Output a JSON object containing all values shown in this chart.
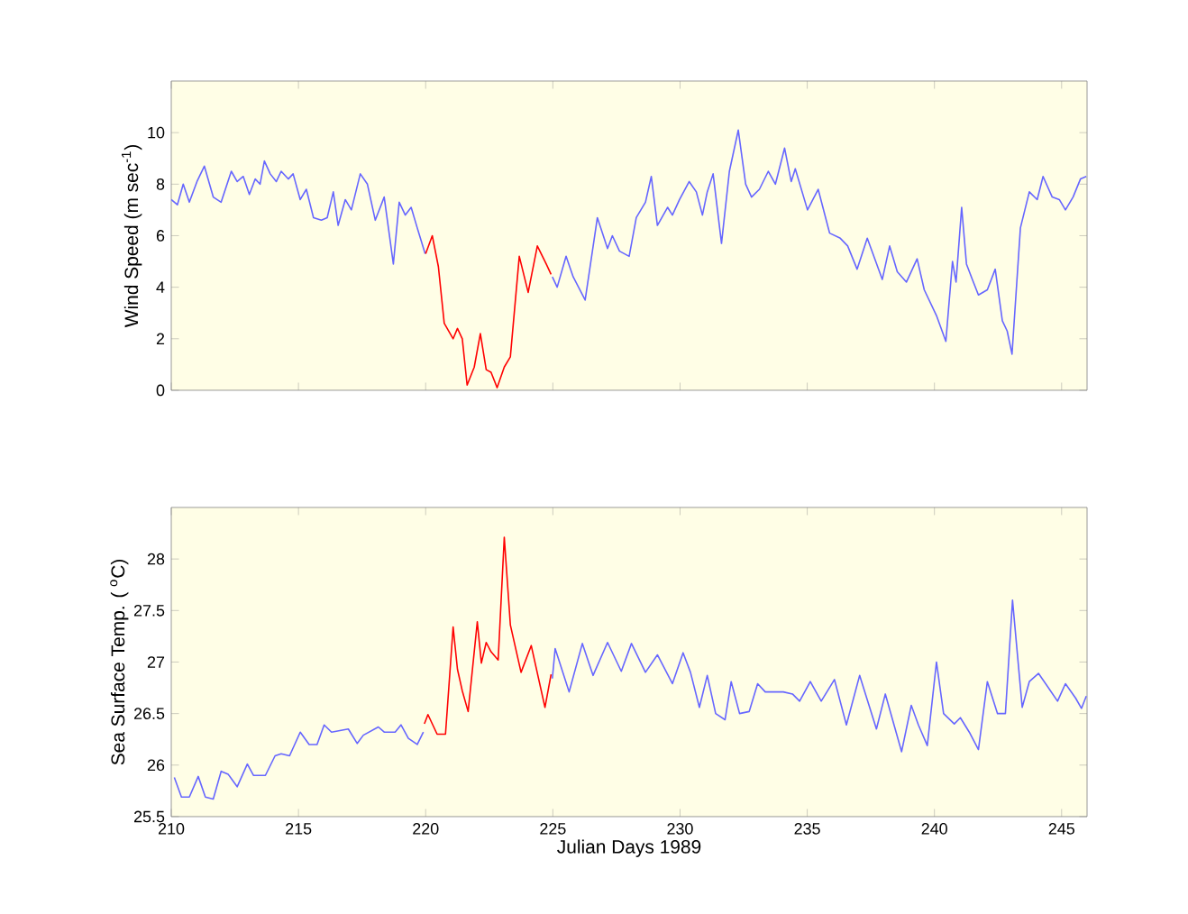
{
  "chart_data": [
    {
      "type": "line",
      "ylabel": "Wind Speed (m sec$^{-1}$)",
      "xlim": [
        210,
        246
      ],
      "ylim": [
        0,
        12
      ],
      "xticks": [
        210,
        215,
        220,
        225,
        230,
        235,
        240,
        245
      ],
      "yticks": [
        0,
        2,
        4,
        6,
        8,
        10
      ],
      "tick_labels": "y",
      "grid": false,
      "line_style": "solid",
      "marker": "none",
      "series": [
        {
          "color": "#6666ff",
          "x": [
            210.0,
            210.24,
            210.47,
            210.71,
            211.01,
            211.3,
            211.65,
            211.96,
            212.36,
            212.59,
            212.83,
            213.07,
            213.3,
            213.49,
            213.66,
            213.89,
            214.13,
            214.32,
            214.6,
            214.79,
            215.07,
            215.31,
            215.59,
            215.9,
            216.13,
            216.37,
            216.56,
            216.84,
            217.08,
            217.43,
            217.71,
            218.02,
            218.37,
            218.73,
            218.96,
            219.2,
            219.43,
            219.67,
            219.98,
            222.5,
            224.98,
            225.17,
            225.52,
            225.8,
            226.27,
            226.75,
            227.15,
            227.34,
            227.62,
            228.0,
            228.28,
            228.64,
            228.87,
            229.11,
            229.51,
            229.7,
            229.98,
            230.36,
            230.64,
            230.88,
            231.07,
            231.3,
            231.63,
            231.94,
            232.29,
            232.58,
            232.81,
            233.12,
            233.47,
            233.75,
            234.11,
            234.37,
            234.53,
            235.01,
            235.43,
            235.88,
            236.3,
            236.59,
            236.96,
            237.36,
            237.95,
            238.24,
            238.54,
            238.9,
            239.32,
            239.6,
            240.08,
            240.45,
            240.71,
            240.85,
            241.07,
            241.26,
            241.49,
            241.73,
            242.08,
            242.39,
            242.67,
            242.86,
            243.05,
            243.38,
            243.73,
            244.04,
            244.27,
            244.63,
            244.91,
            245.15,
            245.45,
            245.74,
            245.97
          ],
          "values": [
            7.4,
            7.2,
            8.0,
            7.3,
            8.1,
            8.7,
            7.5,
            7.3,
            8.5,
            8.1,
            8.3,
            7.6,
            8.2,
            8.0,
            8.9,
            8.4,
            8.1,
            8.5,
            8.2,
            8.4,
            7.4,
            7.8,
            6.7,
            6.6,
            6.7,
            7.7,
            6.4,
            7.4,
            7.0,
            8.4,
            8.0,
            6.6,
            7.5,
            4.9,
            7.3,
            6.8,
            7.1,
            6.3,
            5.3,
            null,
            4.4,
            4.0,
            5.2,
            4.4,
            3.5,
            6.7,
            5.5,
            6.0,
            5.4,
            5.2,
            6.7,
            7.3,
            8.3,
            6.4,
            7.1,
            6.8,
            7.4,
            8.1,
            7.7,
            6.8,
            7.7,
            8.4,
            5.7,
            8.5,
            10.1,
            8.0,
            7.5,
            7.8,
            8.5,
            8.0,
            9.4,
            8.1,
            8.6,
            7.0,
            7.8,
            6.1,
            5.9,
            5.6,
            4.7,
            5.9,
            4.3,
            5.6,
            4.6,
            4.2,
            5.1,
            3.9,
            2.9,
            1.9,
            5.0,
            4.2,
            7.1,
            4.9,
            4.3,
            3.7,
            3.9,
            4.7,
            2.7,
            2.3,
            1.4,
            6.3,
            7.7,
            7.4,
            8.3,
            7.5,
            7.4,
            7.0,
            7.5,
            8.2,
            8.3
          ]
        },
        {
          "color": "#ff0000",
          "x": [
            220.0,
            220.26,
            220.5,
            220.73,
            221.08,
            221.25,
            221.44,
            221.63,
            221.91,
            222.15,
            222.38,
            222.57,
            222.81,
            223.09,
            223.33,
            223.68,
            224.03,
            224.39,
            224.74,
            224.93
          ],
          "values": [
            5.3,
            6.0,
            4.8,
            2.6,
            2.0,
            2.4,
            2.0,
            0.2,
            0.9,
            2.2,
            0.8,
            0.7,
            0.1,
            0.9,
            1.3,
            5.2,
            3.8,
            5.6,
            4.9,
            4.5
          ]
        }
      ]
    },
    {
      "type": "line",
      "ylabel": "Sea Surface Temp. ( $^{o}$C)",
      "xlabel": "Julian Days 1989",
      "xlim": [
        210,
        246
      ],
      "ylim": [
        25.5,
        28.5
      ],
      "xticks": [
        210,
        215,
        220,
        225,
        230,
        235,
        240,
        245
      ],
      "yticks": [
        25.5,
        26,
        26.5,
        27,
        27.5,
        28
      ],
      "grid": false,
      "line_style": "solid",
      "marker": "none",
      "series": [
        {
          "color": "#6666ff",
          "x": [
            210.12,
            210.4,
            210.71,
            211.06,
            211.34,
            211.65,
            211.96,
            212.24,
            212.59,
            212.99,
            213.23,
            213.7,
            214.08,
            214.32,
            214.65,
            215.07,
            215.42,
            215.73,
            216.01,
            216.3,
            216.96,
            217.31,
            217.55,
            218.14,
            218.37,
            218.8,
            219.03,
            219.32,
            219.67,
            219.91,
            222.5,
            224.98,
            225.09,
            225.64,
            226.16,
            226.58,
            227.15,
            227.69,
            228.09,
            228.64,
            229.11,
            229.7,
            230.12,
            230.41,
            230.76,
            231.07,
            231.4,
            231.77,
            232.01,
            232.34,
            232.72,
            233.05,
            233.35,
            234.06,
            234.42,
            234.7,
            235.12,
            235.55,
            236.07,
            236.54,
            237.06,
            237.72,
            238.07,
            238.71,
            239.09,
            239.37,
            239.72,
            240.08,
            240.36,
            240.78,
            241.02,
            241.37,
            241.73,
            242.08,
            242.48,
            242.79,
            243.07,
            243.45,
            243.73,
            244.09,
            244.51,
            244.84,
            245.15,
            245.55,
            245.78,
            245.97
          ],
          "values": [
            25.88,
            25.69,
            25.69,
            25.89,
            25.69,
            25.67,
            25.94,
            25.91,
            25.79,
            26.01,
            25.9,
            25.9,
            26.09,
            26.11,
            26.09,
            26.32,
            26.2,
            26.2,
            26.39,
            26.32,
            26.35,
            26.21,
            26.29,
            26.37,
            26.32,
            26.32,
            26.39,
            26.26,
            26.2,
            26.32,
            null,
            26.84,
            27.13,
            26.71,
            27.18,
            26.87,
            27.19,
            26.91,
            27.18,
            26.9,
            27.07,
            26.79,
            27.09,
            26.9,
            26.56,
            26.87,
            26.5,
            26.44,
            26.81,
            26.5,
            26.52,
            26.79,
            26.71,
            26.71,
            26.69,
            26.62,
            26.81,
            26.62,
            26.83,
            26.39,
            26.87,
            26.35,
            26.69,
            26.13,
            26.58,
            26.39,
            26.19,
            27.0,
            26.5,
            26.4,
            26.46,
            26.32,
            26.15,
            26.81,
            26.5,
            26.5,
            27.6,
            26.56,
            26.81,
            26.89,
            26.74,
            26.62,
            26.79,
            26.65,
            26.55,
            26.67
          ]
        },
        {
          "color": "#ff0000",
          "x": [
            219.95,
            220.09,
            220.45,
            220.78,
            221.08,
            221.25,
            221.44,
            221.67,
            222.03,
            222.19,
            222.38,
            222.57,
            222.85,
            223.09,
            223.33,
            223.75,
            224.15,
            224.69,
            224.93
          ],
          "values": [
            26.4,
            26.49,
            26.3,
            26.3,
            27.34,
            26.93,
            26.72,
            26.52,
            27.39,
            26.99,
            27.19,
            27.1,
            27.02,
            28.21,
            27.36,
            26.9,
            27.16,
            26.56,
            26.88
          ]
        }
      ]
    }
  ]
}
